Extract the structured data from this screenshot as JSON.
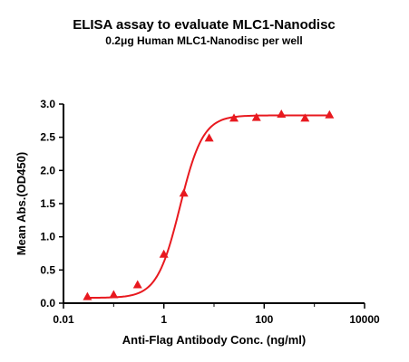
{
  "chart_data": {
    "type": "scatter",
    "title": "ELISA assay to evaluate MLC1-Nanodisc",
    "subtitle": "0.2μg Human MLC1-Nanodisc per well",
    "xlabel": "Anti-Flag Antibody Conc. (ng/ml)",
    "ylabel": "Mean Abs.(OD450)",
    "x_scale": "log",
    "xlim": [
      0.01,
      10000
    ],
    "ylim": [
      0.0,
      3.0
    ],
    "x_ticks": [
      "0.01",
      "1",
      "100",
      "10000"
    ],
    "y_ticks": [
      "0.0",
      "0.5",
      "1.0",
      "1.5",
      "2.0",
      "2.5",
      "3.0"
    ],
    "grid": false,
    "marker": "triangle",
    "color": "#e8191f",
    "series": [
      {
        "x": [
          0.03,
          0.1,
          0.3,
          1.0,
          2.5,
          8.0,
          25,
          70,
          220,
          650,
          2000
        ],
        "y": [
          0.1,
          0.13,
          0.28,
          0.74,
          1.66,
          2.49,
          2.79,
          2.8,
          2.85,
          2.79,
          2.84
        ]
      }
    ],
    "fit": {
      "type": "4PL",
      "bottom": 0.08,
      "top": 2.83,
      "ec50": 2.1,
      "hill": 1.9
    }
  }
}
